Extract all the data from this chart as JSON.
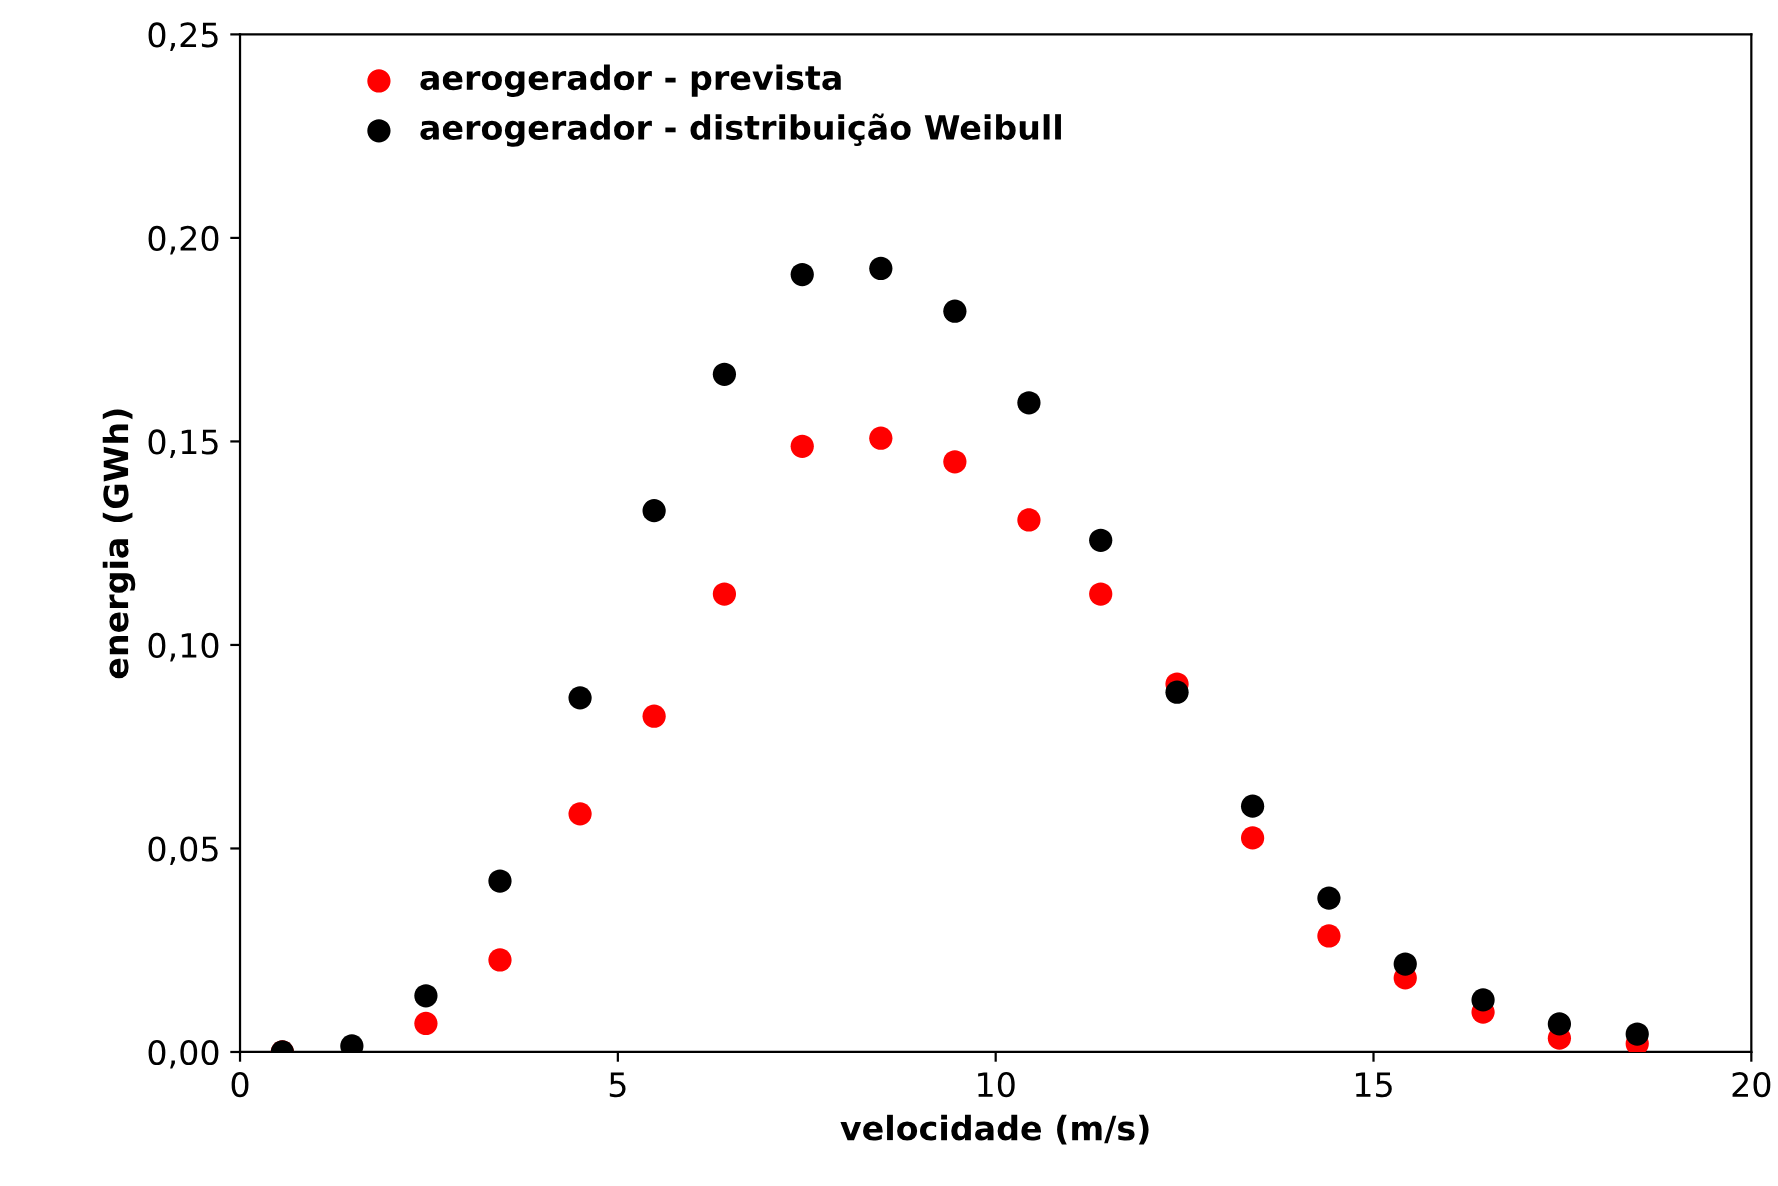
{
  "chart_data": {
    "type": "scatter",
    "xlabel": "velocidade (m/s)",
    "ylabel": "energia (GWh)",
    "xlim": [
      0,
      20
    ],
    "xticks": [
      0,
      5,
      10,
      15,
      20
    ],
    "ylim": [
      0,
      0.25
    ],
    "yticks": [
      {
        "value": 0,
        "label": "0,00"
      },
      {
        "value": 0.05,
        "label": "0,05"
      },
      {
        "value": 0.1,
        "label": "0,10"
      },
      {
        "value": 0.15,
        "label": "0,15"
      },
      {
        "value": 0.2,
        "label": "0,20"
      },
      {
        "value": 0.25,
        "label": "0,25"
      }
    ],
    "grid": false,
    "legend": "top left",
    "marker": "circle",
    "series": [
      {
        "name": "aerogerador - prevista",
        "color": "#ff0000",
        "x": [
          0.56,
          1.48,
          2.46,
          3.44,
          4.5,
          5.48,
          6.41,
          7.44,
          8.48,
          9.46,
          10.44,
          11.39,
          12.4,
          13.4,
          14.41,
          15.42,
          16.45,
          17.46,
          18.49
        ],
        "values": [
          0,
          null,
          0.007,
          0.0226,
          0.0585,
          0.0825,
          0.1125,
          0.1488,
          0.1508,
          0.145,
          0.1307,
          0.1125,
          0.0904,
          0.0526,
          0.0285,
          0.0182,
          0.0098,
          0.0034,
          0.002
        ]
      },
      {
        "name": "aerogerador - distribuição Weibull",
        "color": "#000000",
        "x": [
          0.56,
          1.48,
          2.46,
          3.44,
          4.5,
          5.48,
          6.41,
          7.44,
          8.48,
          9.46,
          10.44,
          11.39,
          12.4,
          13.4,
          14.41,
          15.42,
          16.45,
          17.46,
          18.49
        ],
        "values": [
          0,
          0.0015,
          0.0138,
          0.042,
          0.087,
          0.133,
          0.1665,
          0.191,
          0.1925,
          0.182,
          0.1595,
          0.1257,
          0.0884,
          0.0604,
          0.0378,
          0.0216,
          0.0128,
          0.0069,
          0.0044
        ]
      }
    ]
  }
}
